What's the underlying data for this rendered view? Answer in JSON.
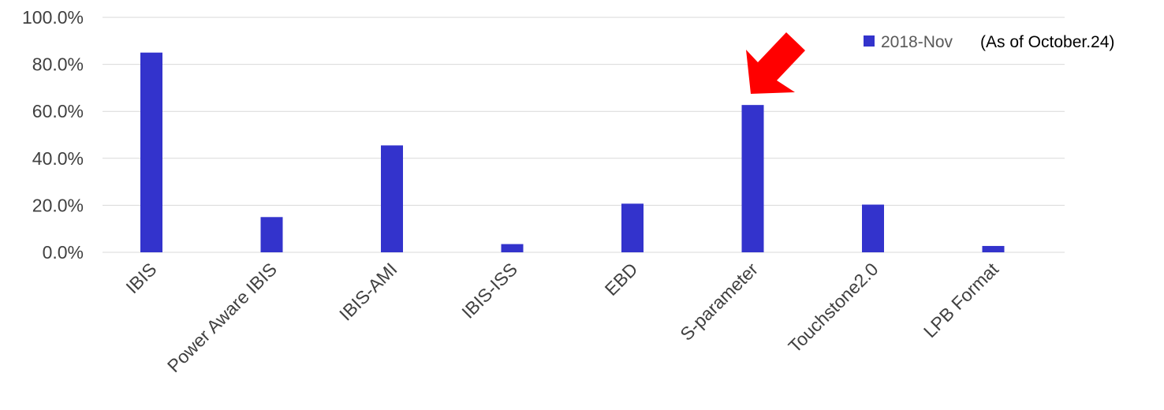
{
  "chart_data": {
    "type": "bar",
    "categories": [
      "IBIS",
      "Power Aware IBIS",
      "IBIS-AMI",
      "IBIS-ISS",
      "EBD",
      "S-parameter",
      "Touchstone2.0",
      "LPB Format"
    ],
    "series": [
      {
        "name": "2018-Nov",
        "values": [
          85.0,
          15.0,
          45.5,
          3.5,
          20.7,
          62.7,
          20.3,
          2.7
        ]
      }
    ],
    "y_tick_labels": [
      "0.0%",
      "20.0%",
      "40.0%",
      "60.0%",
      "80.0%",
      "100.0%"
    ],
    "ylim": [
      0,
      100
    ],
    "y_format": "percent",
    "grid": true,
    "legend": {
      "position": "top-right",
      "note": "(As of October.24)"
    },
    "annotation": "arrow-pointing-to-S-parameter",
    "colors": {
      "bar": "#3333cc",
      "grid": "#d9d9d9",
      "arrow": "#ff0000"
    }
  }
}
